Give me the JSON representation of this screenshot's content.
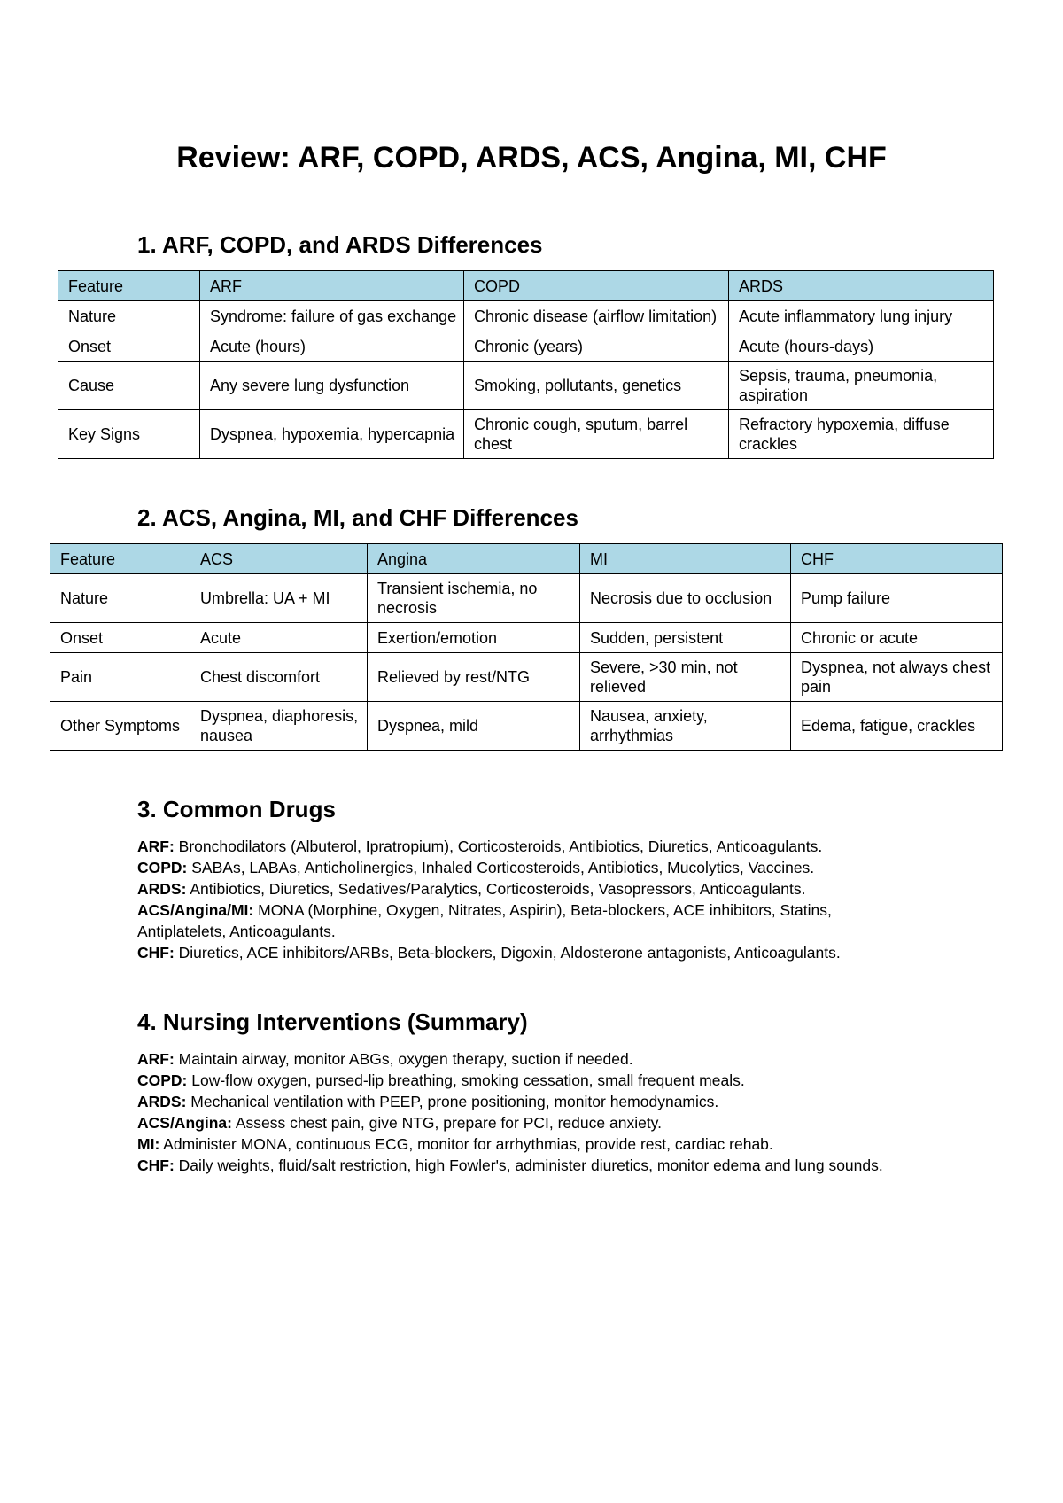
{
  "title": "Review: ARF, COPD, ARDS, ACS, Angina, MI, CHF",
  "section1": {
    "heading": "1. ARF, COPD, and ARDS Differences",
    "header": [
      "Feature",
      "ARF",
      "COPD",
      "ARDS"
    ],
    "rows": [
      [
        "Nature",
        "Syndrome: failure of gas exchange",
        "Chronic disease (airflow limitation)",
        "Acute inflammatory lung injury"
      ],
      [
        "Onset",
        "Acute (hours)",
        "Chronic (years)",
        "Acute (hours-days)"
      ],
      [
        "Cause",
        "Any severe lung dysfunction",
        "Smoking, pollutants, genetics",
        "Sepsis, trauma, pneumonia, aspiration"
      ],
      [
        "Key Signs",
        "Dyspnea, hypoxemia, hypercapnia",
        "Chronic cough, sputum, barrel chest",
        "Refractory hypoxemia, diffuse crackles"
      ]
    ]
  },
  "section2": {
    "heading": "2. ACS, Angina, MI, and CHF Differences",
    "header": [
      "Feature",
      "ACS",
      "Angina",
      "MI",
      "CHF"
    ],
    "rows": [
      [
        "Nature",
        "Umbrella: UA + MI",
        "Transient ischemia, no necrosis",
        "Necrosis due to occlusion",
        "Pump failure"
      ],
      [
        "Onset",
        "Acute",
        "Exertion/emotion",
        "Sudden, persistent",
        "Chronic or acute"
      ],
      [
        "Pain",
        "Chest discomfort",
        "Relieved by rest/NTG",
        "Severe, >30 min, not relieved",
        "Dyspnea, not always chest pain"
      ],
      [
        "Other Symptoms",
        "Dyspnea, diaphoresis, nausea",
        "Dyspnea, mild",
        "Nausea, anxiety, arrhythmias",
        "Edema, fatigue, crackles"
      ]
    ]
  },
  "section3": {
    "heading": "3. Common Drugs",
    "items": [
      {
        "label": "ARF:",
        "text": " Bronchodilators (Albuterol, Ipratropium), Corticosteroids, Antibiotics, Diuretics, Anticoagulants."
      },
      {
        "label": "COPD:",
        "text": " SABAs, LABAs, Anticholinergics, Inhaled Corticosteroids, Antibiotics, Mucolytics, Vaccines."
      },
      {
        "label": "ARDS:",
        "text": " Antibiotics, Diuretics, Sedatives/Paralytics, Corticosteroids, Vasopressors, Anticoagulants."
      },
      {
        "label": "ACS/Angina/MI:",
        "text": " MONA (Morphine, Oxygen, Nitrates, Aspirin), Beta-blockers, ACE inhibitors, Statins, Antiplatelets, Anticoagulants."
      },
      {
        "label": "CHF:",
        "text": " Diuretics, ACE inhibitors/ARBs, Beta-blockers, Digoxin, Aldosterone antagonists, Anticoagulants."
      }
    ]
  },
  "section4": {
    "heading": "4. Nursing Interventions (Summary)",
    "items": [
      {
        "label": "ARF:",
        "text": " Maintain airway, monitor ABGs, oxygen therapy, suction if needed."
      },
      {
        "label": "COPD:",
        "text": " Low-flow oxygen, pursed-lip breathing, smoking cessation, small frequent meals."
      },
      {
        "label": "ARDS:",
        "text": " Mechanical ventilation with PEEP, prone positioning, monitor hemodynamics."
      },
      {
        "label": "ACS/Angina:",
        "text": " Assess chest pain, give NTG, prepare for PCI, reduce anxiety."
      },
      {
        "label": "MI:",
        "text": " Administer MONA, continuous ECG, monitor for arrhythmias, provide rest, cardiac rehab."
      },
      {
        "label": "CHF:",
        "text": " Daily weights, fluid/salt restriction, high Fowler's, administer diuretics, monitor edema and lung sounds."
      }
    ]
  }
}
